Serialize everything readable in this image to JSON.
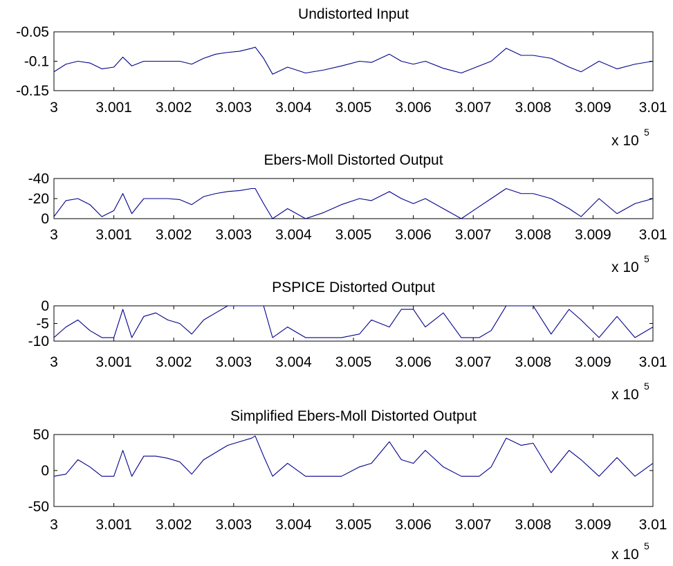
{
  "figure": {
    "background": "#ffffff",
    "line_color": "#00008b"
  },
  "chart_data": [
    {
      "type": "line",
      "title": "Undistorted Input",
      "x_multiplier": "x 10",
      "x_exponent": "5",
      "xlim": [
        3.0,
        3.01
      ],
      "ylim": [
        -0.15,
        -0.05
      ],
      "xticks": [
        3.0,
        3.001,
        3.002,
        3.003,
        3.004,
        3.005,
        3.006,
        3.007,
        3.008,
        3.009,
        3.01
      ],
      "xtick_labels": [
        "3",
        "3.001",
        "3.002",
        "3.003",
        "3.004",
        "3.005",
        "3.006",
        "3.007",
        "3.008",
        "3.009",
        "3.01"
      ],
      "yticks": [
        -0.05,
        -0.1,
        -0.15
      ],
      "ytick_labels": [
        "-0.05",
        "-0.1",
        "-0.15"
      ],
      "y_reversed": false,
      "series": [
        {
          "x": [
            3.0,
            3.0002,
            3.0004,
            3.0006,
            3.0008,
            3.001,
            3.00115,
            3.0013,
            3.0015,
            3.0017,
            3.0019,
            3.0021,
            3.0023,
            3.0025,
            3.0027,
            3.0029,
            3.0031,
            3.0033,
            3.00336,
            3.0035,
            3.00365,
            3.0039,
            3.0042,
            3.0045,
            3.0048,
            3.0051,
            3.0053,
            3.0056,
            3.0058,
            3.006,
            3.0062,
            3.0065,
            3.0068,
            3.0071,
            3.0073,
            3.00755,
            3.0078,
            3.008,
            3.0083,
            3.0086,
            3.0088,
            3.0091,
            3.0094,
            3.0097,
            3.01
          ],
          "y": [
            -0.118,
            -0.105,
            -0.1,
            -0.103,
            -0.113,
            -0.11,
            -0.093,
            -0.108,
            -0.1,
            -0.1,
            -0.1,
            -0.1,
            -0.105,
            -0.095,
            -0.088,
            -0.085,
            -0.083,
            -0.078,
            -0.076,
            -0.095,
            -0.122,
            -0.11,
            -0.12,
            -0.115,
            -0.108,
            -0.1,
            -0.102,
            -0.088,
            -0.1,
            -0.105,
            -0.1,
            -0.112,
            -0.12,
            -0.108,
            -0.1,
            -0.078,
            -0.09,
            -0.09,
            -0.095,
            -0.11,
            -0.118,
            -0.1,
            -0.113,
            -0.105,
            -0.1
          ]
        }
      ]
    },
    {
      "type": "line",
      "title": "Ebers-Moll Distorted Output",
      "x_multiplier": "x 10",
      "x_exponent": "5",
      "xlim": [
        3.0,
        3.01
      ],
      "ylim": [
        0,
        -40
      ],
      "xticks": [
        3.0,
        3.001,
        3.002,
        3.003,
        3.004,
        3.005,
        3.006,
        3.007,
        3.008,
        3.009,
        3.01
      ],
      "xtick_labels": [
        "3",
        "3.001",
        "3.002",
        "3.003",
        "3.004",
        "3.005",
        "3.006",
        "3.007",
        "3.008",
        "3.009",
        "3.01"
      ],
      "yticks": [
        -40,
        -20,
        0
      ],
      "ytick_labels": [
        "-40",
        "-20",
        "0"
      ],
      "y_reversed": true,
      "series": [
        {
          "x": [
            3.0,
            3.0002,
            3.0004,
            3.0006,
            3.0008,
            3.001,
            3.00115,
            3.0013,
            3.0015,
            3.0017,
            3.0019,
            3.0021,
            3.0023,
            3.0025,
            3.0027,
            3.0029,
            3.0031,
            3.0033,
            3.00336,
            3.0035,
            3.00365,
            3.0039,
            3.0042,
            3.0045,
            3.0048,
            3.0051,
            3.0053,
            3.0056,
            3.0058,
            3.006,
            3.0062,
            3.0065,
            3.0068,
            3.0071,
            3.0073,
            3.00755,
            3.0078,
            3.008,
            3.0083,
            3.0086,
            3.0088,
            3.0091,
            3.0094,
            3.0097,
            3.01
          ],
          "y": [
            -2,
            -18,
            -20,
            -14,
            -2,
            -8,
            -25,
            -5,
            -20,
            -20,
            -20,
            -19,
            -14,
            -22,
            -25,
            -27,
            -28,
            -30,
            -30,
            -15,
            0,
            -10,
            0,
            -6,
            -14,
            -20,
            -18,
            -27,
            -20,
            -15,
            -20,
            -10,
            0,
            -12,
            -20,
            -30,
            -25,
            -25,
            -20,
            -10,
            -2,
            -20,
            -5,
            -15,
            -20
          ]
        }
      ]
    },
    {
      "type": "line",
      "title": "PSPICE Distorted Output",
      "x_multiplier": "x 10",
      "x_exponent": "5",
      "xlim": [
        3.0,
        3.01
      ],
      "ylim": [
        -10,
        0
      ],
      "xticks": [
        3.0,
        3.001,
        3.002,
        3.003,
        3.004,
        3.005,
        3.006,
        3.007,
        3.008,
        3.009,
        3.01
      ],
      "xtick_labels": [
        "3",
        "3.001",
        "3.002",
        "3.003",
        "3.004",
        "3.005",
        "3.006",
        "3.007",
        "3.008",
        "3.009",
        "3.01"
      ],
      "yticks": [
        0,
        -5,
        -10
      ],
      "ytick_labels": [
        "0",
        "-5",
        "-10"
      ],
      "y_reversed": false,
      "series": [
        {
          "x": [
            3.0,
            3.0002,
            3.0004,
            3.0006,
            3.0008,
            3.001,
            3.00115,
            3.0013,
            3.0015,
            3.0017,
            3.0019,
            3.0021,
            3.0023,
            3.0025,
            3.0027,
            3.0029,
            3.0031,
            3.0033,
            3.00336,
            3.0035,
            3.00365,
            3.0039,
            3.0042,
            3.0045,
            3.0048,
            3.0051,
            3.0053,
            3.0056,
            3.0058,
            3.006,
            3.0062,
            3.0065,
            3.0068,
            3.0071,
            3.0073,
            3.00755,
            3.0078,
            3.008,
            3.0083,
            3.0086,
            3.0088,
            3.0091,
            3.0094,
            3.0097,
            3.01
          ],
          "y": [
            -9,
            -6,
            -4,
            -7,
            -9,
            -9,
            -1,
            -9,
            -3,
            -2,
            -4,
            -5,
            -8,
            -4,
            -2,
            0,
            0,
            0,
            0,
            0,
            -9,
            -6,
            -9,
            -9,
            -9,
            -8,
            -4,
            -6,
            -1,
            -1,
            -6,
            -2,
            -9,
            -9,
            -7,
            0,
            0,
            0,
            -8,
            -1,
            -4,
            -9,
            -3,
            -9,
            -6
          ]
        }
      ]
    },
    {
      "type": "line",
      "title": "Simplified Ebers-Moll Distorted Output",
      "x_multiplier": "x 10",
      "x_exponent": "5",
      "xlim": [
        3.0,
        3.01
      ],
      "ylim": [
        -50,
        50
      ],
      "xticks": [
        3.0,
        3.001,
        3.002,
        3.003,
        3.004,
        3.005,
        3.006,
        3.007,
        3.008,
        3.009,
        3.01
      ],
      "xtick_labels": [
        "3",
        "3.001",
        "3.002",
        "3.003",
        "3.004",
        "3.005",
        "3.006",
        "3.007",
        "3.008",
        "3.009",
        "3.01"
      ],
      "yticks": [
        50,
        0,
        -50
      ],
      "ytick_labels": [
        "50",
        "0",
        "-50"
      ],
      "y_reversed": false,
      "series": [
        {
          "x": [
            3.0,
            3.0002,
            3.0004,
            3.0006,
            3.0008,
            3.001,
            3.00115,
            3.0013,
            3.0015,
            3.0017,
            3.0019,
            3.0021,
            3.0023,
            3.0025,
            3.0027,
            3.0029,
            3.0031,
            3.0033,
            3.00336,
            3.0035,
            3.00365,
            3.0039,
            3.0042,
            3.0045,
            3.0048,
            3.0051,
            3.0053,
            3.0056,
            3.0058,
            3.006,
            3.0062,
            3.0065,
            3.0068,
            3.0071,
            3.0073,
            3.00755,
            3.0078,
            3.008,
            3.0083,
            3.0086,
            3.0088,
            3.0091,
            3.0094,
            3.0097,
            3.01
          ],
          "y": [
            -8,
            -5,
            15,
            5,
            -8,
            -8,
            28,
            -8,
            20,
            20,
            17,
            12,
            -5,
            15,
            25,
            35,
            40,
            45,
            48,
            20,
            -8,
            10,
            -8,
            -8,
            -8,
            5,
            10,
            40,
            15,
            10,
            28,
            5,
            -8,
            -8,
            5,
            45,
            35,
            38,
            -3,
            28,
            15,
            -8,
            18,
            -8,
            10
          ]
        }
      ]
    }
  ]
}
